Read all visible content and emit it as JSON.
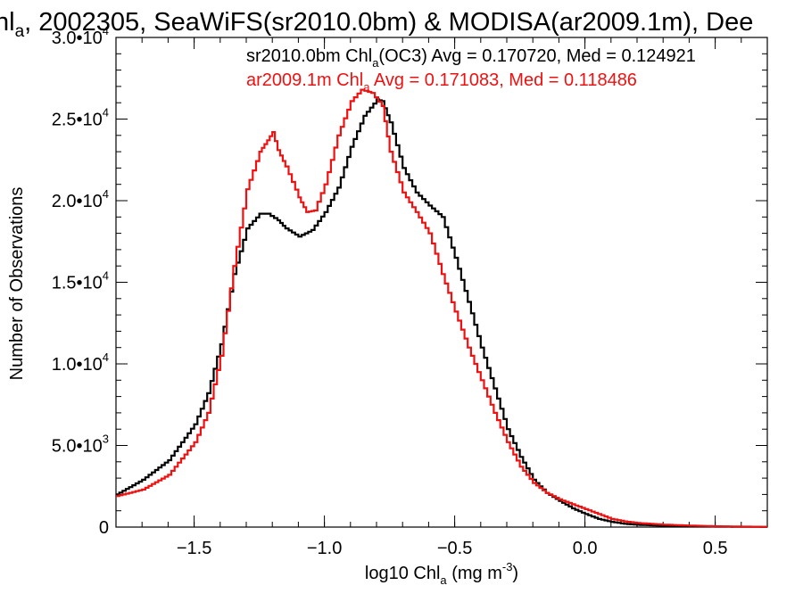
{
  "chart_data": {
    "type": "line",
    "title_parts": [
      "hl",
      "a",
      ", 2002305, SeaWiFS(sr2010.0bm) & MODISA(ar2009.1m), Dee"
    ],
    "xlabel_parts": [
      "log10 Chl",
      "a",
      " (mg m",
      "-3",
      ")"
    ],
    "ylabel": "Number of Observations",
    "xlim": [
      -1.8,
      0.7
    ],
    "ylim": [
      0,
      30000
    ],
    "x_ticks": [
      {
        "value": -1.5,
        "label": "−1.5"
      },
      {
        "value": -1.0,
        "label": "−1.0"
      },
      {
        "value": -0.5,
        "label": "−0.5"
      },
      {
        "value": 0.0,
        "label": "0.0"
      },
      {
        "value": 0.5,
        "label": "0.5"
      }
    ],
    "x_minor_step": 0.1,
    "y_ticks": [
      {
        "value": 0,
        "mant": "0",
        "exp": ""
      },
      {
        "value": 5000,
        "mant": "5.0•10",
        "exp": "3"
      },
      {
        "value": 10000,
        "mant": "1.0•10",
        "exp": "4"
      },
      {
        "value": 15000,
        "mant": "1.5•10",
        "exp": "4"
      },
      {
        "value": 20000,
        "mant": "2.0•10",
        "exp": "4"
      },
      {
        "value": 25000,
        "mant": "2.5•10",
        "exp": "4"
      },
      {
        "value": 30000,
        "mant": "3.0•10",
        "exp": "4"
      }
    ],
    "y_minor_step": 1000,
    "grid": false,
    "legend_position": "top-right",
    "series": [
      {
        "name_parts": [
          "sr2010.0bm Chl",
          "a",
          "(OC3) Avg = 0.170720, Med = 0.124921"
        ],
        "color": "#000000",
        "x": [
          -1.8,
          -1.7,
          -1.6,
          -1.5,
          -1.45,
          -1.4,
          -1.35,
          -1.3,
          -1.25,
          -1.22,
          -1.18,
          -1.15,
          -1.1,
          -1.05,
          -1.0,
          -0.95,
          -0.9,
          -0.85,
          -0.8,
          -0.78,
          -0.75,
          -0.7,
          -0.65,
          -0.6,
          -0.55,
          -0.5,
          -0.45,
          -0.4,
          -0.35,
          -0.3,
          -0.25,
          -0.2,
          -0.15,
          -0.1,
          -0.05,
          0.0,
          0.05,
          0.1,
          0.15,
          0.2,
          0.3,
          0.4,
          0.5,
          0.6,
          0.7
        ],
        "y": [
          2000,
          2900,
          4100,
          6300,
          8200,
          11200,
          15500,
          18300,
          19200,
          19200,
          18800,
          18300,
          17800,
          18200,
          19300,
          20800,
          23300,
          25200,
          26200,
          26100,
          24800,
          22000,
          20500,
          19700,
          19000,
          16500,
          13800,
          11000,
          8500,
          6000,
          4300,
          2900,
          2100,
          1600,
          1150,
          800,
          500,
          320,
          200,
          140,
          80,
          50,
          30,
          20,
          10
        ]
      },
      {
        "name_parts": [
          "ar2009.1m Chl",
          "a",
          " Avg = 0.171083, Med = 0.118486"
        ],
        "color": "#ee1111",
        "x": [
          -1.8,
          -1.7,
          -1.6,
          -1.5,
          -1.45,
          -1.4,
          -1.35,
          -1.3,
          -1.25,
          -1.22,
          -1.2,
          -1.18,
          -1.15,
          -1.1,
          -1.07,
          -1.04,
          -1.0,
          -0.95,
          -0.9,
          -0.86,
          -0.82,
          -0.78,
          -0.75,
          -0.7,
          -0.65,
          -0.6,
          -0.55,
          -0.5,
          -0.45,
          -0.4,
          -0.35,
          -0.3,
          -0.25,
          -0.2,
          -0.15,
          -0.1,
          -0.05,
          0.0,
          0.05,
          0.1,
          0.15,
          0.2,
          0.3,
          0.4,
          0.5,
          0.6,
          0.7
        ],
        "y": [
          1900,
          2300,
          3200,
          5200,
          7000,
          10500,
          16000,
          20700,
          23000,
          23700,
          24200,
          23100,
          22100,
          20200,
          19300,
          19400,
          21000,
          24000,
          26100,
          26800,
          26600,
          25800,
          23000,
          20500,
          19300,
          18000,
          15500,
          13200,
          11000,
          9000,
          7000,
          5200,
          3700,
          2700,
          2100,
          1700,
          1400,
          1100,
          800,
          500,
          350,
          250,
          150,
          90,
          50,
          30,
          15
        ]
      }
    ]
  }
}
